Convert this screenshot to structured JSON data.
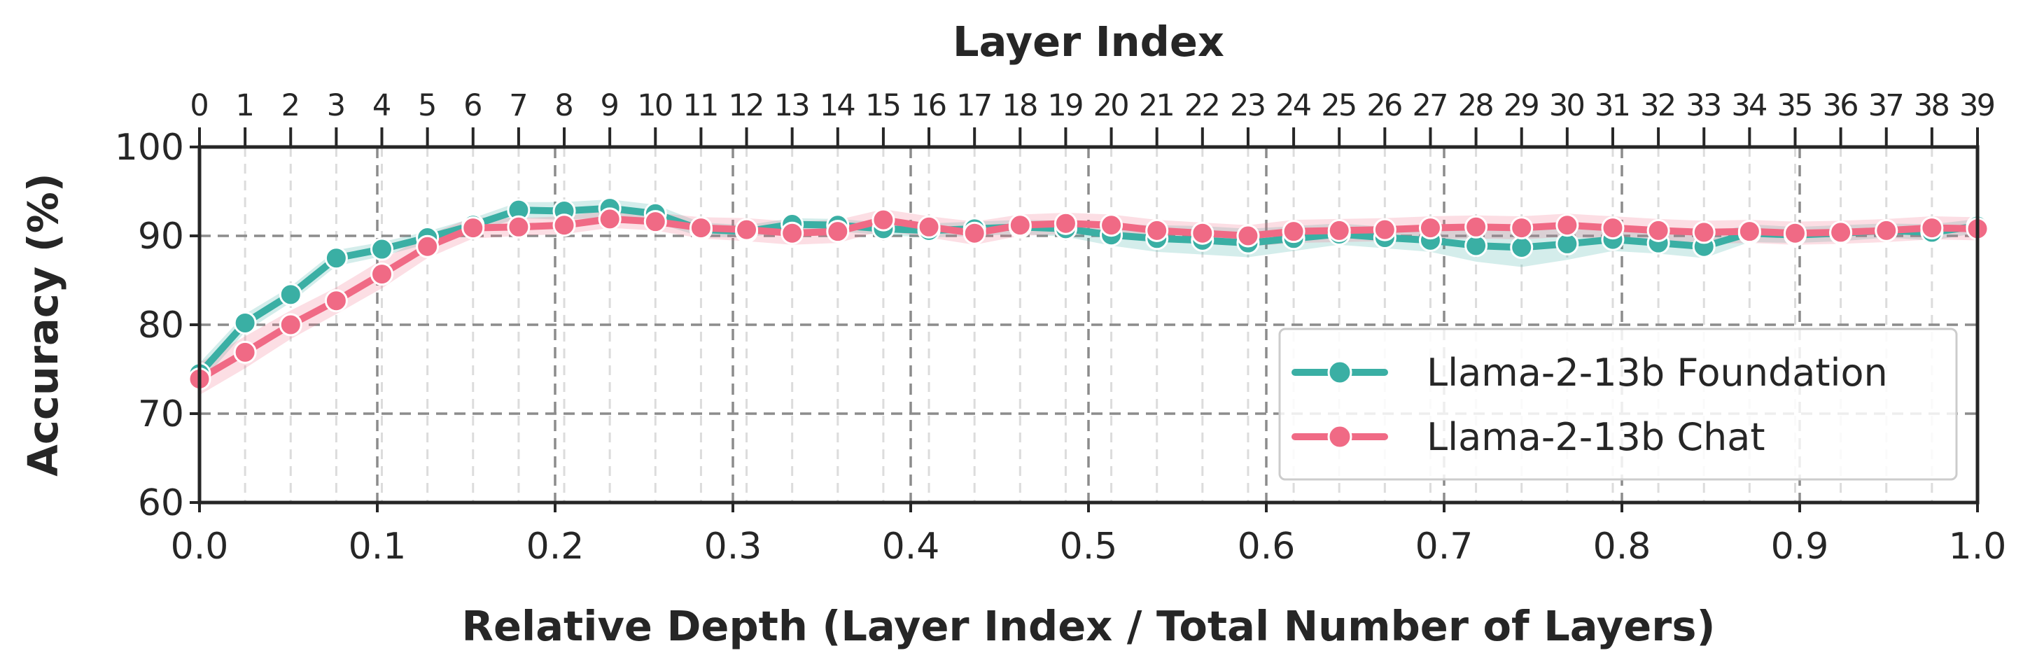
{
  "chart_data": {
    "type": "line",
    "xlabel": "Relative Depth (Layer Index / Total Number of Layers)",
    "ylabel": "Accuracy (%)",
    "top_xlabel": "Layer Index",
    "xlim": [
      0.0,
      1.0
    ],
    "ylim": [
      60,
      100
    ],
    "xticks": [
      "0.0",
      "0.1",
      "0.2",
      "0.3",
      "0.4",
      "0.5",
      "0.6",
      "0.7",
      "0.8",
      "0.9",
      "1.0"
    ],
    "yticks": [
      "60",
      "70",
      "80",
      "90",
      "100"
    ],
    "top_xticks": [
      "0",
      "1",
      "2",
      "3",
      "4",
      "5",
      "6",
      "7",
      "8",
      "9",
      "10",
      "11",
      "12",
      "13",
      "14",
      "15",
      "16",
      "17",
      "18",
      "19",
      "20",
      "21",
      "22",
      "23",
      "24",
      "25",
      "26",
      "27",
      "28",
      "29",
      "30",
      "31",
      "32",
      "33",
      "34",
      "35",
      "36",
      "37",
      "38",
      "39"
    ],
    "grid": true,
    "legend_position": "lower-right",
    "series": [
      {
        "name": "Llama-2-13b Foundation",
        "color": "#3aafa4",
        "values": [
          74.5,
          80.2,
          83.4,
          87.5,
          88.5,
          89.8,
          91.2,
          92.9,
          92.8,
          93.1,
          92.5,
          90.7,
          90.5,
          91.3,
          91.2,
          90.8,
          90.6,
          90.8,
          91.0,
          90.8,
          90.1,
          89.7,
          89.5,
          89.2,
          89.7,
          90.2,
          89.8,
          89.5,
          88.9,
          88.7,
          89.1,
          89.6,
          89.2,
          88.8,
          90.3,
          90.1,
          90.3,
          90.6,
          90.4,
          91.1
        ],
        "band_width": [
          1.2,
          1.0,
          0.9,
          0.9,
          0.8,
          0.7,
          0.8,
          0.9,
          1.0,
          1.0,
          1.0,
          0.8,
          0.7,
          0.7,
          0.7,
          0.7,
          0.8,
          0.8,
          0.8,
          0.9,
          1.2,
          1.5,
          1.6,
          1.6,
          1.4,
          1.2,
          1.2,
          1.3,
          1.8,
          2.2,
          1.8,
          1.3,
          1.2,
          1.3,
          1.0,
          0.9,
          0.9,
          0.8,
          0.9,
          0.8
        ]
      },
      {
        "name": "Llama-2-13b Chat",
        "color": "#f06a85",
        "values": [
          73.9,
          76.9,
          80.0,
          82.7,
          85.7,
          88.8,
          90.9,
          91.0,
          91.2,
          91.9,
          91.6,
          90.9,
          90.7,
          90.3,
          90.5,
          91.8,
          91.0,
          90.3,
          91.2,
          91.4,
          91.2,
          90.6,
          90.3,
          90.0,
          90.5,
          90.6,
          90.7,
          90.9,
          91.0,
          90.9,
          91.2,
          90.9,
          90.6,
          90.4,
          90.5,
          90.3,
          90.4,
          90.6,
          90.9,
          90.8
        ],
        "band_width": [
          1.8,
          1.8,
          1.6,
          1.5,
          1.6,
          1.3,
          1.2,
          1.0,
          1.0,
          1.0,
          1.0,
          1.2,
          1.3,
          1.3,
          1.3,
          1.2,
          1.2,
          1.3,
          1.2,
          1.2,
          1.2,
          1.2,
          1.2,
          1.2,
          1.3,
          1.3,
          1.3,
          1.3,
          1.3,
          1.3,
          1.3,
          1.3,
          1.3,
          1.3,
          1.3,
          1.3,
          1.3,
          1.3,
          1.3,
          1.3
        ]
      }
    ]
  }
}
